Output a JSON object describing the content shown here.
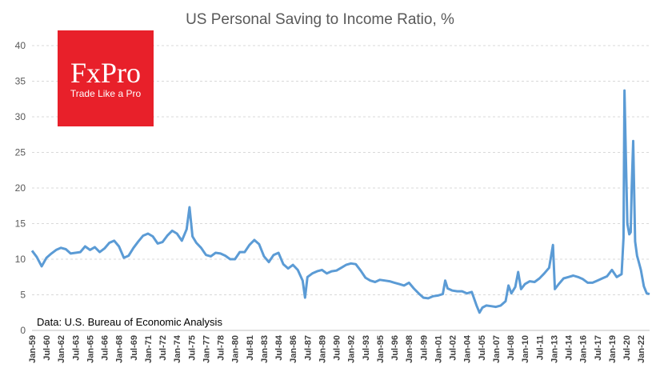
{
  "chart_data": {
    "type": "line",
    "title": "US Personal Saving to Income Ratio, %",
    "xlabel": "",
    "ylabel": "",
    "ylim": [
      0,
      40
    ],
    "yticks": [
      0,
      5,
      10,
      15,
      20,
      25,
      30,
      35,
      40
    ],
    "xlim": [
      1959.0,
      2022.9
    ],
    "xtick_labels": [
      "Jan-59",
      "Jul-60",
      "Jan-62",
      "Jul-63",
      "Jan-65",
      "Jul-66",
      "Jan-68",
      "Jul-69",
      "Jan-71",
      "Jul-72",
      "Jan-74",
      "Jul-75",
      "Jan-77",
      "Jul-78",
      "Jan-80",
      "Jul-81",
      "Jan-83",
      "Jul-84",
      "Jan-86",
      "Jul-87",
      "Jan-89",
      "Jul-90",
      "Jan-92",
      "Jul-93",
      "Jan-95",
      "Jul-96",
      "Jan-98",
      "Jul-99",
      "Jan-01",
      "Jul-02",
      "Jan-04",
      "Jul-05",
      "Jan-07",
      "Jul-08",
      "Jan-10",
      "Jul-11",
      "Jan-13",
      "Jul-14",
      "Jan-16",
      "Jul-17",
      "Jan-19",
      "Jul-20",
      "Jan-22"
    ],
    "grid": "horizontal",
    "legend": "none",
    "series": [
      {
        "color": "#5b9bd5",
        "points": [
          [
            1959.0,
            11.2
          ],
          [
            1959.5,
            10.3
          ],
          [
            1960.0,
            9.0
          ],
          [
            1960.5,
            10.2
          ],
          [
            1961.0,
            10.8
          ],
          [
            1961.5,
            11.3
          ],
          [
            1962.0,
            11.6
          ],
          [
            1962.5,
            11.4
          ],
          [
            1963.0,
            10.8
          ],
          [
            1963.5,
            10.9
          ],
          [
            1964.0,
            11.0
          ],
          [
            1964.5,
            11.8
          ],
          [
            1965.0,
            11.3
          ],
          [
            1965.5,
            11.7
          ],
          [
            1966.0,
            11.0
          ],
          [
            1966.5,
            11.5
          ],
          [
            1967.0,
            12.3
          ],
          [
            1967.5,
            12.6
          ],
          [
            1968.0,
            11.8
          ],
          [
            1968.5,
            10.2
          ],
          [
            1969.0,
            10.5
          ],
          [
            1969.5,
            11.6
          ],
          [
            1970.0,
            12.5
          ],
          [
            1970.5,
            13.3
          ],
          [
            1971.0,
            13.6
          ],
          [
            1971.5,
            13.2
          ],
          [
            1972.0,
            12.2
          ],
          [
            1972.5,
            12.4
          ],
          [
            1973.0,
            13.3
          ],
          [
            1973.5,
            14.0
          ],
          [
            1974.0,
            13.6
          ],
          [
            1974.5,
            12.6
          ],
          [
            1975.0,
            14.2
          ],
          [
            1975.3,
            17.3
          ],
          [
            1975.6,
            13.2
          ],
          [
            1976.0,
            12.3
          ],
          [
            1976.5,
            11.6
          ],
          [
            1977.0,
            10.6
          ],
          [
            1977.5,
            10.4
          ],
          [
            1978.0,
            10.9
          ],
          [
            1978.5,
            10.8
          ],
          [
            1979.0,
            10.5
          ],
          [
            1979.5,
            10.0
          ],
          [
            1980.0,
            10.0
          ],
          [
            1980.5,
            11.0
          ],
          [
            1981.0,
            11.0
          ],
          [
            1981.5,
            12.0
          ],
          [
            1982.0,
            12.7
          ],
          [
            1982.5,
            12.1
          ],
          [
            1983.0,
            10.4
          ],
          [
            1983.5,
            9.6
          ],
          [
            1984.0,
            10.6
          ],
          [
            1984.5,
            10.9
          ],
          [
            1985.0,
            9.3
          ],
          [
            1985.5,
            8.7
          ],
          [
            1986.0,
            9.2
          ],
          [
            1986.5,
            8.5
          ],
          [
            1987.0,
            7.0
          ],
          [
            1987.25,
            4.6
          ],
          [
            1987.5,
            7.5
          ],
          [
            1988.0,
            8.0
          ],
          [
            1988.5,
            8.3
          ],
          [
            1989.0,
            8.5
          ],
          [
            1989.5,
            8.0
          ],
          [
            1990.0,
            8.3
          ],
          [
            1990.5,
            8.4
          ],
          [
            1991.0,
            8.8
          ],
          [
            1991.5,
            9.2
          ],
          [
            1992.0,
            9.4
          ],
          [
            1992.5,
            9.3
          ],
          [
            1993.0,
            8.4
          ],
          [
            1993.5,
            7.4
          ],
          [
            1994.0,
            7.0
          ],
          [
            1994.5,
            6.8
          ],
          [
            1995.0,
            7.1
          ],
          [
            1995.5,
            7.0
          ],
          [
            1996.0,
            6.9
          ],
          [
            1996.5,
            6.7
          ],
          [
            1997.0,
            6.5
          ],
          [
            1997.5,
            6.3
          ],
          [
            1998.0,
            6.7
          ],
          [
            1998.5,
            5.9
          ],
          [
            1999.0,
            5.2
          ],
          [
            1999.5,
            4.6
          ],
          [
            2000.0,
            4.5
          ],
          [
            2000.5,
            4.8
          ],
          [
            2001.0,
            4.9
          ],
          [
            2001.5,
            5.1
          ],
          [
            2001.75,
            7.0
          ],
          [
            2002.0,
            5.9
          ],
          [
            2002.5,
            5.6
          ],
          [
            2003.0,
            5.5
          ],
          [
            2003.5,
            5.5
          ],
          [
            2004.0,
            5.2
          ],
          [
            2004.5,
            5.4
          ],
          [
            2005.0,
            3.5
          ],
          [
            2005.3,
            2.5
          ],
          [
            2005.6,
            3.2
          ],
          [
            2006.0,
            3.5
          ],
          [
            2006.5,
            3.4
          ],
          [
            2007.0,
            3.3
          ],
          [
            2007.5,
            3.5
          ],
          [
            2008.0,
            4.1
          ],
          [
            2008.3,
            6.3
          ],
          [
            2008.6,
            5.2
          ],
          [
            2009.0,
            6.1
          ],
          [
            2009.3,
            8.2
          ],
          [
            2009.6,
            5.8
          ],
          [
            2010.0,
            6.5
          ],
          [
            2010.5,
            6.9
          ],
          [
            2011.0,
            6.8
          ],
          [
            2011.5,
            7.3
          ],
          [
            2012.0,
            8.0
          ],
          [
            2012.5,
            8.8
          ],
          [
            2012.9,
            12.0
          ],
          [
            2013.1,
            5.8
          ],
          [
            2013.5,
            6.5
          ],
          [
            2014.0,
            7.3
          ],
          [
            2014.5,
            7.5
          ],
          [
            2015.0,
            7.7
          ],
          [
            2015.5,
            7.5
          ],
          [
            2016.0,
            7.2
          ],
          [
            2016.5,
            6.7
          ],
          [
            2017.0,
            6.7
          ],
          [
            2017.5,
            7.0
          ],
          [
            2018.0,
            7.3
          ],
          [
            2018.5,
            7.6
          ],
          [
            2019.0,
            8.5
          ],
          [
            2019.5,
            7.5
          ],
          [
            2020.0,
            7.9
          ],
          [
            2020.2,
            13.0
          ],
          [
            2020.3,
            33.7
          ],
          [
            2020.45,
            24.0
          ],
          [
            2020.6,
            15.0
          ],
          [
            2020.8,
            13.5
          ],
          [
            2020.95,
            13.8
          ],
          [
            2021.05,
            19.9
          ],
          [
            2021.2,
            26.6
          ],
          [
            2021.4,
            12.5
          ],
          [
            2021.6,
            10.5
          ],
          [
            2021.8,
            9.5
          ],
          [
            2022.0,
            8.5
          ],
          [
            2022.3,
            6.2
          ],
          [
            2022.6,
            5.2
          ],
          [
            2022.9,
            5.1
          ]
        ]
      }
    ]
  },
  "source_note": "Data: U.S. Bureau of Economic Analysis",
  "logo": {
    "brand": "FxPro",
    "tagline": "Trade Like a Pro",
    "bg_color": "#e8202a",
    "text_color": "#ffffff"
  }
}
